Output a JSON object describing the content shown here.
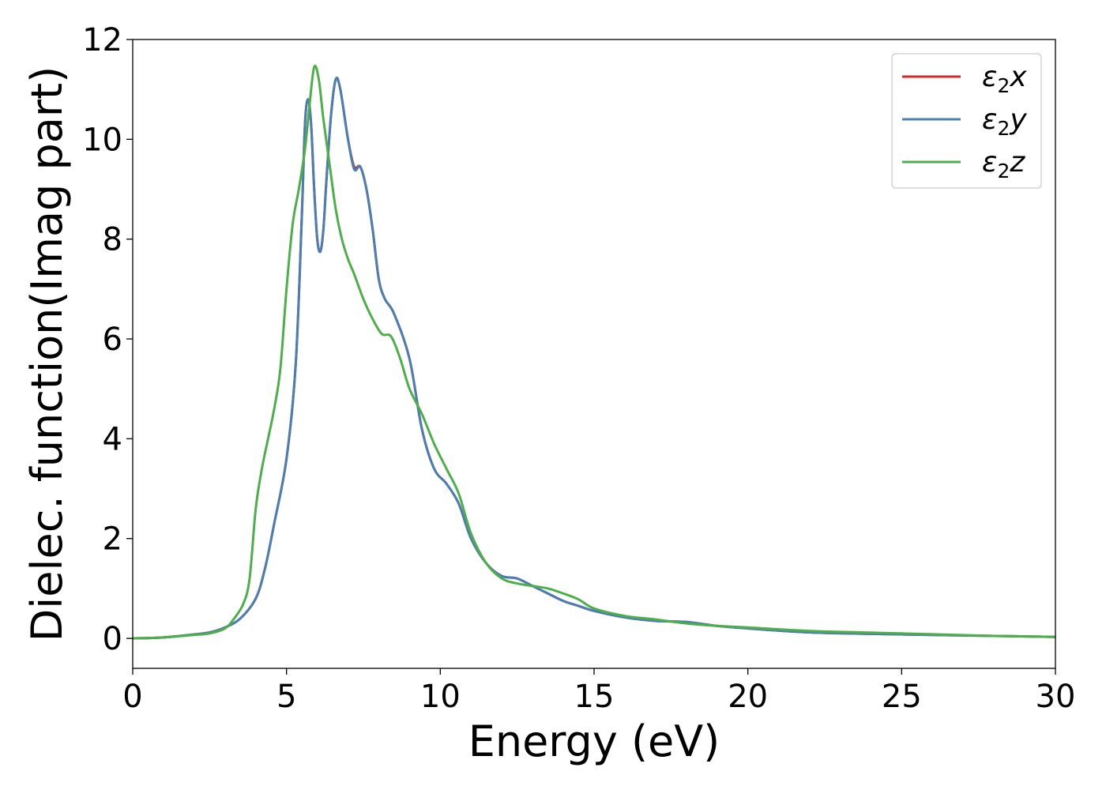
{
  "chart_data": {
    "type": "line",
    "title": "",
    "xlabel": "Energy (eV)",
    "ylabel": "Dielec. function(Imag part)",
    "xlim": [
      0,
      30
    ],
    "ylim": [
      -0.6,
      12
    ],
    "xticks": [
      0,
      5,
      10,
      15,
      20,
      25,
      30
    ],
    "yticks": [
      0,
      2,
      4,
      6,
      8,
      10,
      12
    ],
    "grid": false,
    "legend_position": "top-right",
    "series": [
      {
        "name": "ε₂x",
        "legend_base": "ε",
        "legend_sub": "2",
        "legend_var": "x",
        "color": "#d62728",
        "points": [
          [
            0,
            0
          ],
          [
            1,
            0.02
          ],
          [
            2,
            0.08
          ],
          [
            2.5,
            0.12
          ],
          [
            3,
            0.22
          ],
          [
            3.5,
            0.4
          ],
          [
            4,
            0.8
          ],
          [
            4.3,
            1.4
          ],
          [
            4.6,
            2.3
          ],
          [
            5,
            3.6
          ],
          [
            5.3,
            5.5
          ],
          [
            5.5,
            8.5
          ],
          [
            5.6,
            10.3
          ],
          [
            5.7,
            10.8
          ],
          [
            5.8,
            10.3
          ],
          [
            5.9,
            9.0
          ],
          [
            6.0,
            8.0
          ],
          [
            6.1,
            7.75
          ],
          [
            6.2,
            8.2
          ],
          [
            6.3,
            9.2
          ],
          [
            6.45,
            10.5
          ],
          [
            6.6,
            11.2
          ],
          [
            6.75,
            11.0
          ],
          [
            7.0,
            10.0
          ],
          [
            7.2,
            9.45
          ],
          [
            7.4,
            9.45
          ],
          [
            7.6,
            9.0
          ],
          [
            7.8,
            8.2
          ],
          [
            8.0,
            7.2
          ],
          [
            8.2,
            6.8
          ],
          [
            8.5,
            6.5
          ],
          [
            9.0,
            5.6
          ],
          [
            9.4,
            4.2
          ],
          [
            9.8,
            3.4
          ],
          [
            10.2,
            3.1
          ],
          [
            10.6,
            2.7
          ],
          [
            11.0,
            2.0
          ],
          [
            11.5,
            1.5
          ],
          [
            12.0,
            1.25
          ],
          [
            12.5,
            1.2
          ],
          [
            13.0,
            1.05
          ],
          [
            13.5,
            0.9
          ],
          [
            14.0,
            0.75
          ],
          [
            14.5,
            0.65
          ],
          [
            15.0,
            0.55
          ],
          [
            16.0,
            0.42
          ],
          [
            17.0,
            0.35
          ],
          [
            18.0,
            0.33
          ],
          [
            19.0,
            0.25
          ],
          [
            20.0,
            0.2
          ],
          [
            22.0,
            0.12
          ],
          [
            25.0,
            0.08
          ],
          [
            28.0,
            0.05
          ],
          [
            30.0,
            0.03
          ]
        ]
      },
      {
        "name": "ε₂y",
        "legend_base": "ε",
        "legend_sub": "2",
        "legend_var": "y",
        "color": "#4a7fb5",
        "points": [
          [
            0,
            0
          ],
          [
            1,
            0.02
          ],
          [
            2,
            0.08
          ],
          [
            2.5,
            0.12
          ],
          [
            3,
            0.22
          ],
          [
            3.5,
            0.4
          ],
          [
            4,
            0.8
          ],
          [
            4.3,
            1.4
          ],
          [
            4.6,
            2.3
          ],
          [
            5,
            3.6
          ],
          [
            5.3,
            5.5
          ],
          [
            5.5,
            8.5
          ],
          [
            5.6,
            10.3
          ],
          [
            5.7,
            10.8
          ],
          [
            5.8,
            10.3
          ],
          [
            5.9,
            9.0
          ],
          [
            6.0,
            8.0
          ],
          [
            6.1,
            7.75
          ],
          [
            6.2,
            8.2
          ],
          [
            6.3,
            9.2
          ],
          [
            6.45,
            10.5
          ],
          [
            6.6,
            11.2
          ],
          [
            6.75,
            11.0
          ],
          [
            7.0,
            10.0
          ],
          [
            7.2,
            9.4
          ],
          [
            7.4,
            9.45
          ],
          [
            7.6,
            9.0
          ],
          [
            7.8,
            8.2
          ],
          [
            8.0,
            7.2
          ],
          [
            8.2,
            6.8
          ],
          [
            8.5,
            6.5
          ],
          [
            9.0,
            5.6
          ],
          [
            9.4,
            4.2
          ],
          [
            9.8,
            3.4
          ],
          [
            10.2,
            3.1
          ],
          [
            10.6,
            2.7
          ],
          [
            11.0,
            2.0
          ],
          [
            11.5,
            1.5
          ],
          [
            12.0,
            1.25
          ],
          [
            12.5,
            1.2
          ],
          [
            13.0,
            1.05
          ],
          [
            13.5,
            0.9
          ],
          [
            14.0,
            0.75
          ],
          [
            14.5,
            0.65
          ],
          [
            15.0,
            0.55
          ],
          [
            16.0,
            0.42
          ],
          [
            17.0,
            0.35
          ],
          [
            18.0,
            0.33
          ],
          [
            19.0,
            0.25
          ],
          [
            20.0,
            0.2
          ],
          [
            22.0,
            0.12
          ],
          [
            25.0,
            0.08
          ],
          [
            28.0,
            0.05
          ],
          [
            30.0,
            0.03
          ]
        ]
      },
      {
        "name": "ε₂z",
        "legend_base": "ε",
        "legend_sub": "2",
        "legend_var": "z",
        "color": "#4daf4a",
        "points": [
          [
            0,
            0
          ],
          [
            1,
            0.02
          ],
          [
            2,
            0.07
          ],
          [
            2.5,
            0.1
          ],
          [
            3,
            0.2
          ],
          [
            3.3,
            0.4
          ],
          [
            3.6,
            0.7
          ],
          [
            3.8,
            1.2
          ],
          [
            4.0,
            2.6
          ],
          [
            4.2,
            3.4
          ],
          [
            4.4,
            4.0
          ],
          [
            4.6,
            4.6
          ],
          [
            4.8,
            5.4
          ],
          [
            5.0,
            7.0
          ],
          [
            5.2,
            8.3
          ],
          [
            5.4,
            9.0
          ],
          [
            5.6,
            9.8
          ],
          [
            5.75,
            10.7
          ],
          [
            5.9,
            11.45
          ],
          [
            6.05,
            11.2
          ],
          [
            6.2,
            10.4
          ],
          [
            6.4,
            9.5
          ],
          [
            6.6,
            8.6
          ],
          [
            6.8,
            8.0
          ],
          [
            7.0,
            7.6
          ],
          [
            7.2,
            7.3
          ],
          [
            7.5,
            6.8
          ],
          [
            7.8,
            6.4
          ],
          [
            8.1,
            6.1
          ],
          [
            8.4,
            6.05
          ],
          [
            8.7,
            5.6
          ],
          [
            9.0,
            5.0
          ],
          [
            9.4,
            4.5
          ],
          [
            9.8,
            3.9
          ],
          [
            10.2,
            3.4
          ],
          [
            10.6,
            2.9
          ],
          [
            11.0,
            2.1
          ],
          [
            11.5,
            1.5
          ],
          [
            12.0,
            1.2
          ],
          [
            12.5,
            1.1
          ],
          [
            13.0,
            1.05
          ],
          [
            13.5,
            1.0
          ],
          [
            14.0,
            0.9
          ],
          [
            14.5,
            0.78
          ],
          [
            15.0,
            0.6
          ],
          [
            16.0,
            0.45
          ],
          [
            17.0,
            0.38
          ],
          [
            18.0,
            0.3
          ],
          [
            19.0,
            0.25
          ],
          [
            20.0,
            0.22
          ],
          [
            22.0,
            0.15
          ],
          [
            25.0,
            0.1
          ],
          [
            28.0,
            0.05
          ],
          [
            30.0,
            0.03
          ]
        ]
      }
    ]
  }
}
